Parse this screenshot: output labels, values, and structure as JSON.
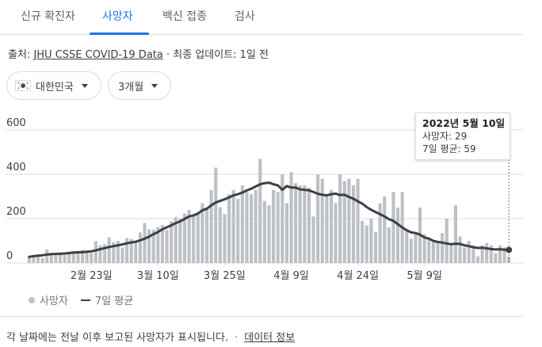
{
  "tabs": [
    {
      "label": "신규 확진자"
    },
    {
      "label": "사망자"
    },
    {
      "label": "백신 접종"
    },
    {
      "label": "검사"
    }
  ],
  "source": {
    "prefix": "출처: ",
    "link": "JHU CSSE COVID-19 Data",
    "suffix": " · 최종 업데이트: 1일 전"
  },
  "filters": {
    "country": "대한민국",
    "range": "3개월"
  },
  "legend": {
    "bars": "사망자",
    "line": "7일 평균"
  },
  "tooltip": {
    "date": "2022년 5월 10일",
    "deaths": "사망자: 29",
    "avg": "7일 평균: 59"
  },
  "footer": {
    "note": "각 날짜에는 전날 이후 보고된 사망자가 표시됩니다.",
    "link": "데이터 정보"
  },
  "colors": {
    "bar": "#bdc1c6",
    "line": "#3c4043",
    "accent": "#1a73e8"
  },
  "chart_data": {
    "type": "bar",
    "ylim": [
      0,
      600
    ],
    "yticks": [
      0,
      200,
      400,
      600
    ],
    "xticks": [
      {
        "label": "2월 23일",
        "index": 14
      },
      {
        "label": "3월 10일",
        "index": 29
      },
      {
        "label": "3월 25일",
        "index": 44
      },
      {
        "label": "4월 9일",
        "index": 59
      },
      {
        "label": "4월 24일",
        "index": 74
      },
      {
        "label": "5월 9일",
        "index": 89
      }
    ],
    "series": [
      {
        "name": "사망자",
        "type": "bar",
        "values": [
          27,
          31,
          34,
          22,
          61,
          36,
          45,
          45,
          36,
          45,
          54,
          56,
          59,
          48,
          45,
          99,
          80,
          85,
          115,
          94,
          100,
          70,
          112,
          109,
          100,
          138,
          180,
          152,
          150,
          162,
          172,
          149,
          189,
          208,
          200,
          223,
          240,
          213,
          230,
          270,
          250,
          328,
          430,
          252,
          220,
          310,
          330,
          290,
          350,
          320,
          310,
          330,
          470,
          280,
          260,
          330,
          320,
          400,
          270,
          410,
          360,
          350,
          350,
          340,
          210,
          400,
          380,
          300,
          330,
          270,
          400,
          370,
          380,
          350,
          380,
          190,
          170,
          200,
          140,
          270,
          300,
          160,
          320,
          250,
          320,
          150,
          110,
          140,
          250,
          130,
          110,
          100,
          100,
          135,
          200,
          90,
          260,
          120,
          70,
          100,
          80,
          30,
          80,
          90,
          80,
          45,
          80,
          70,
          29
        ]
      },
      {
        "name": "7일 평균",
        "type": "line",
        "values": [
          28,
          31,
          33,
          35,
          38,
          40,
          41,
          42,
          43,
          45,
          47,
          48,
          49,
          51,
          53,
          57,
          62,
          67,
          72,
          76,
          80,
          84,
          89,
          93,
          96,
          102,
          110,
          119,
          130,
          140,
          152,
          161,
          170,
          180,
          188,
          199,
          210,
          215,
          223,
          238,
          245,
          260,
          273,
          280,
          287,
          296,
          305,
          310,
          318,
          327,
          335,
          345,
          355,
          360,
          362,
          355,
          350,
          330,
          347,
          340,
          340,
          332,
          330,
          328,
          320,
          312,
          308,
          305,
          310,
          313,
          306,
          308,
          298,
          290,
          278,
          268,
          252,
          240,
          230,
          220,
          210,
          198,
          190,
          175,
          160,
          148,
          138,
          135,
          128,
          115,
          110,
          100,
          95,
          92,
          88,
          85,
          87,
          86,
          80,
          76,
          71,
          68,
          69,
          66,
          63,
          61,
          62,
          60,
          59
        ]
      }
    ]
  }
}
